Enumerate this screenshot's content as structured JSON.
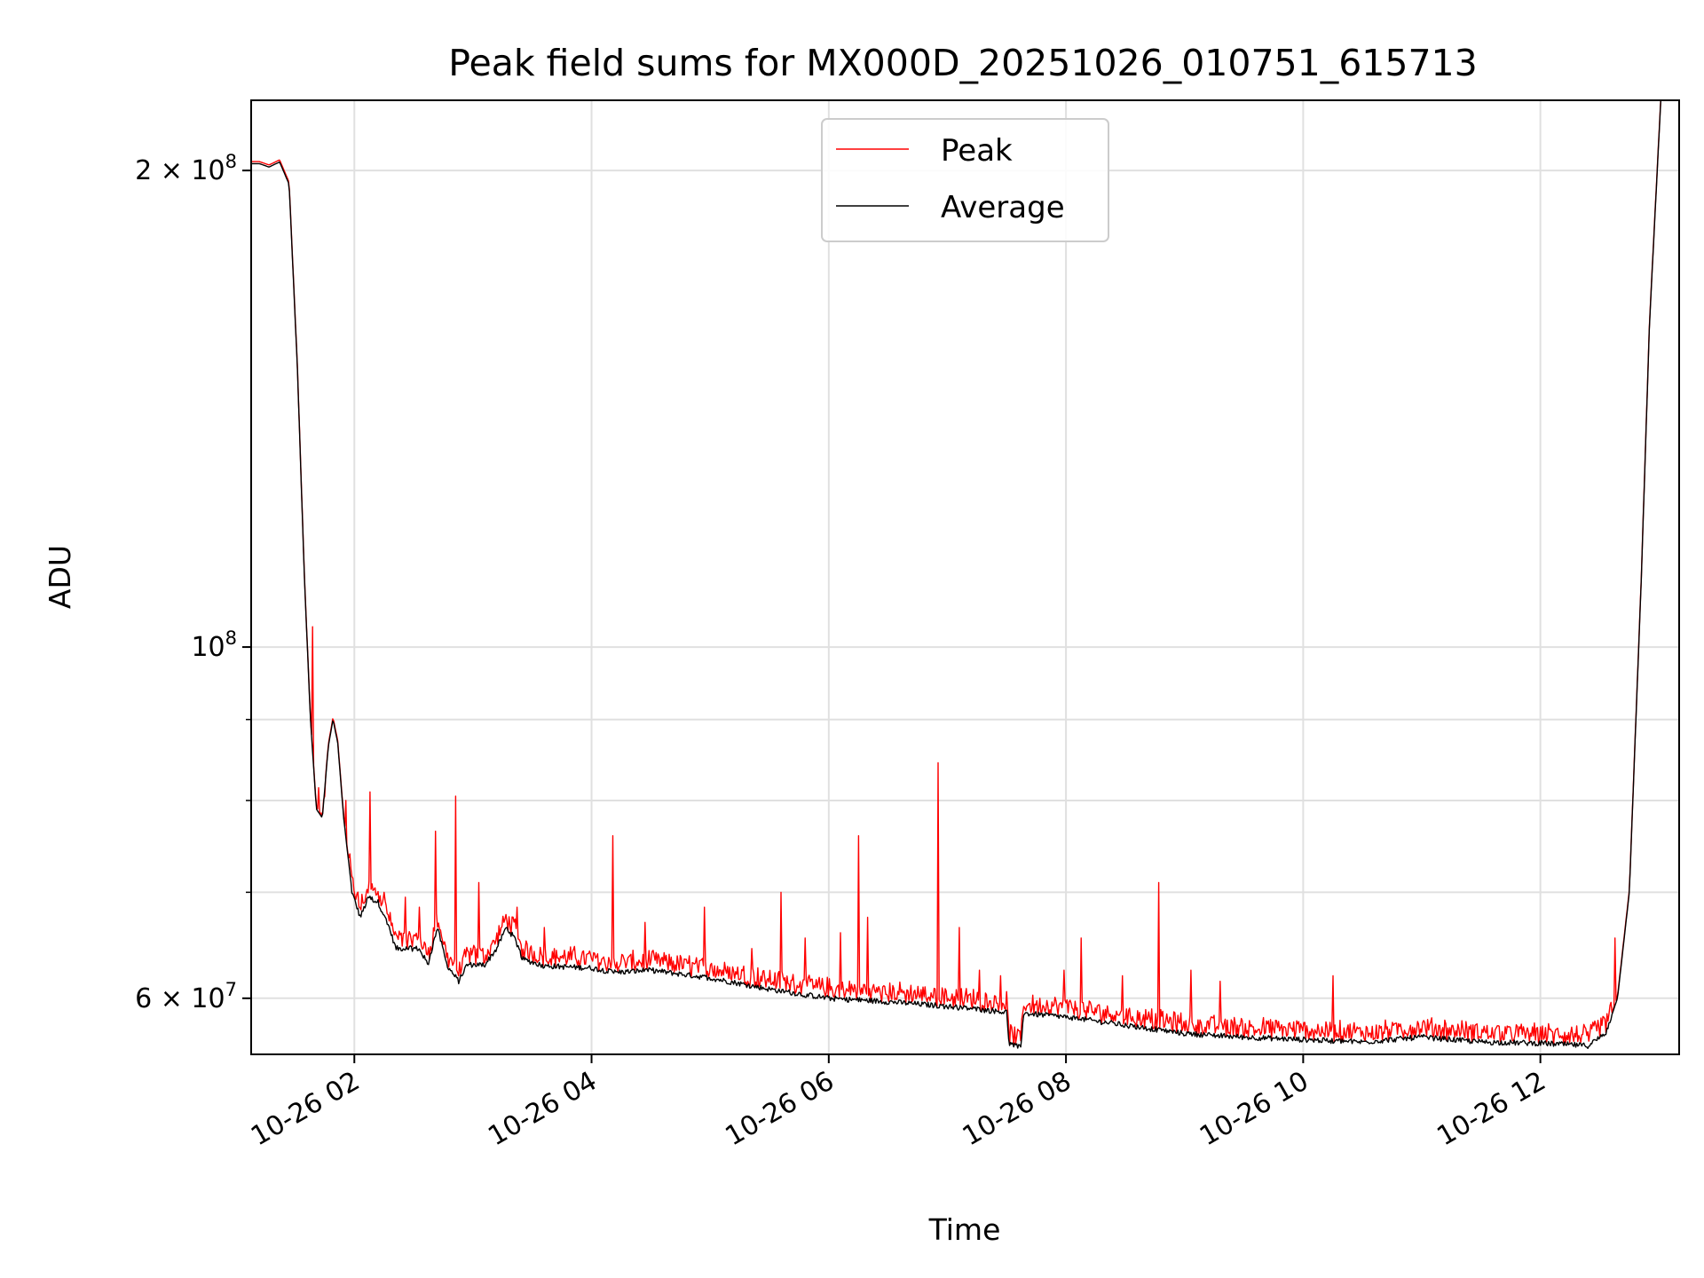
{
  "chart_data": {
    "type": "line",
    "title": "Peak field sums for MX000D_20251026_010751_615713",
    "xlabel": "Time",
    "ylabel": "ADU",
    "yscale": "log",
    "grid": true,
    "legend_position": "top-center",
    "xlim_hours": [
      1.13,
      13.17
    ],
    "ylim": [
      55300000,
      221500000
    ],
    "x_ticks": [
      {
        "hour": 2,
        "label": "10-26 02"
      },
      {
        "hour": 4,
        "label": "10-26 04"
      },
      {
        "hour": 6,
        "label": "10-26 06"
      },
      {
        "hour": 8,
        "label": "10-26 08"
      },
      {
        "hour": 10,
        "label": "10-26 10"
      },
      {
        "hour": 12,
        "label": "10-26 12"
      }
    ],
    "y_major_ticks": [
      {
        "value": 60000000,
        "mantissa": "6",
        "times": "×",
        "base": "10",
        "exp": "7"
      },
      {
        "value": 100000000,
        "mantissa": "",
        "times": "",
        "base": "10",
        "exp": "8"
      },
      {
        "value": 200000000,
        "mantissa": "2",
        "times": "×",
        "base": "10",
        "exp": "8"
      }
    ],
    "y_minor_grid": [
      70000000,
      80000000,
      90000000
    ],
    "series": [
      {
        "name": "Peak",
        "color": "#ff0000",
        "spikes": [
          {
            "hour": 1.65,
            "value": 103000000
          },
          {
            "hour": 1.7,
            "value": 81500000
          },
          {
            "hour": 1.75,
            "value": 80500000
          },
          {
            "hour": 1.93,
            "value": 80000000
          },
          {
            "hour": 2.13,
            "value": 81000000
          },
          {
            "hour": 2.25,
            "value": 70000000
          },
          {
            "hour": 2.43,
            "value": 69500000
          },
          {
            "hour": 2.55,
            "value": 68500000
          },
          {
            "hour": 2.68,
            "value": 76500000
          },
          {
            "hour": 2.85,
            "value": 80500000
          },
          {
            "hour": 3.05,
            "value": 71000000
          },
          {
            "hour": 3.37,
            "value": 68500000
          },
          {
            "hour": 3.6,
            "value": 66500000
          },
          {
            "hour": 4.18,
            "value": 76000000
          },
          {
            "hour": 4.45,
            "value": 67000000
          },
          {
            "hour": 4.95,
            "value": 68500000
          },
          {
            "hour": 5.35,
            "value": 64500000
          },
          {
            "hour": 5.6,
            "value": 70000000
          },
          {
            "hour": 5.8,
            "value": 65500000
          },
          {
            "hour": 6.1,
            "value": 66000000
          },
          {
            "hour": 6.25,
            "value": 76000000
          },
          {
            "hour": 6.33,
            "value": 67500000
          },
          {
            "hour": 6.92,
            "value": 84500000
          },
          {
            "hour": 7.1,
            "value": 66500000
          },
          {
            "hour": 7.27,
            "value": 62500000
          },
          {
            "hour": 7.45,
            "value": 62000000
          },
          {
            "hour": 7.98,
            "value": 62500000
          },
          {
            "hour": 8.13,
            "value": 65500000
          },
          {
            "hour": 8.48,
            "value": 62000000
          },
          {
            "hour": 8.78,
            "value": 71000000
          },
          {
            "hour": 9.05,
            "value": 62500000
          },
          {
            "hour": 9.3,
            "value": 61500000
          },
          {
            "hour": 10.25,
            "value": 62000000
          },
          {
            "hour": 12.63,
            "value": 65500000
          }
        ]
      },
      {
        "name": "Average",
        "color": "#000000",
        "points": [
          [
            1.13,
            202000000
          ],
          [
            1.2,
            202000000
          ],
          [
            1.28,
            201000000
          ],
          [
            1.37,
            202500000
          ],
          [
            1.45,
            196000000
          ],
          [
            1.52,
            150000000
          ],
          [
            1.58,
            110000000
          ],
          [
            1.63,
            90000000
          ],
          [
            1.68,
            79000000
          ],
          [
            1.73,
            78000000
          ],
          [
            1.78,
            86500000
          ],
          [
            1.82,
            90000000
          ],
          [
            1.86,
            87000000
          ],
          [
            1.91,
            78000000
          ],
          [
            1.98,
            70000000
          ],
          [
            2.05,
            67500000
          ],
          [
            2.12,
            69500000
          ],
          [
            2.2,
            69000000
          ],
          [
            2.28,
            67000000
          ],
          [
            2.35,
            64500000
          ],
          [
            2.55,
            64500000
          ],
          [
            2.62,
            63000000
          ],
          [
            2.7,
            66500000
          ],
          [
            2.78,
            63000000
          ],
          [
            2.88,
            61500000
          ],
          [
            2.95,
            63000000
          ],
          [
            3.1,
            63000000
          ],
          [
            3.2,
            64500000
          ],
          [
            3.28,
            66500000
          ],
          [
            3.35,
            65500000
          ],
          [
            3.42,
            63500000
          ],
          [
            3.6,
            62900000
          ],
          [
            4.0,
            62700000
          ],
          [
            4.2,
            62300000
          ],
          [
            4.5,
            62500000
          ],
          [
            5.0,
            61800000
          ],
          [
            5.5,
            60800000
          ],
          [
            6.0,
            60000000
          ],
          [
            6.5,
            59700000
          ],
          [
            7.0,
            59300000
          ],
          [
            7.5,
            58800000
          ],
          [
            7.52,
            56200000
          ],
          [
            7.62,
            55800000
          ],
          [
            7.64,
            58700000
          ],
          [
            8.0,
            58400000
          ],
          [
            8.5,
            57700000
          ],
          [
            9.0,
            57000000
          ],
          [
            9.5,
            56700000
          ],
          [
            10.0,
            56500000
          ],
          [
            10.5,
            56300000
          ],
          [
            11.0,
            56700000
          ],
          [
            11.5,
            56300000
          ],
          [
            12.0,
            56200000
          ],
          [
            12.4,
            56000000
          ],
          [
            12.55,
            57000000
          ],
          [
            12.65,
            60000000
          ],
          [
            12.75,
            70000000
          ],
          [
            12.85,
            110000000
          ],
          [
            12.92,
            160000000
          ],
          [
            13.02,
            225000000
          ]
        ]
      }
    ]
  }
}
